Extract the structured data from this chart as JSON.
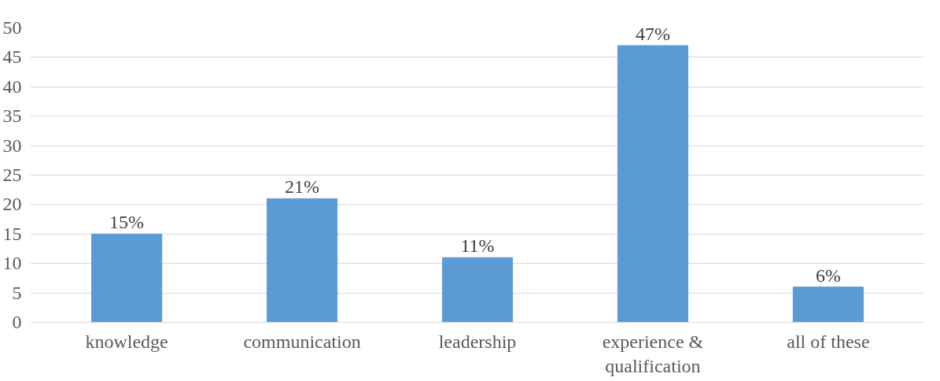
{
  "chart_data": {
    "type": "bar",
    "categories": [
      "knowledge",
      "communication",
      "leadership",
      "experience &\nqualification",
      "all of these"
    ],
    "values": [
      15,
      21,
      11,
      47,
      6
    ],
    "value_labels": [
      "15%",
      "21%",
      "11%",
      "47%",
      "6%"
    ],
    "color": "#5b9bd5",
    "ylim": [
      0,
      50
    ],
    "yticks": [
      0,
      5,
      10,
      15,
      20,
      25,
      30,
      35,
      40,
      45,
      50
    ],
    "grid": "y"
  }
}
